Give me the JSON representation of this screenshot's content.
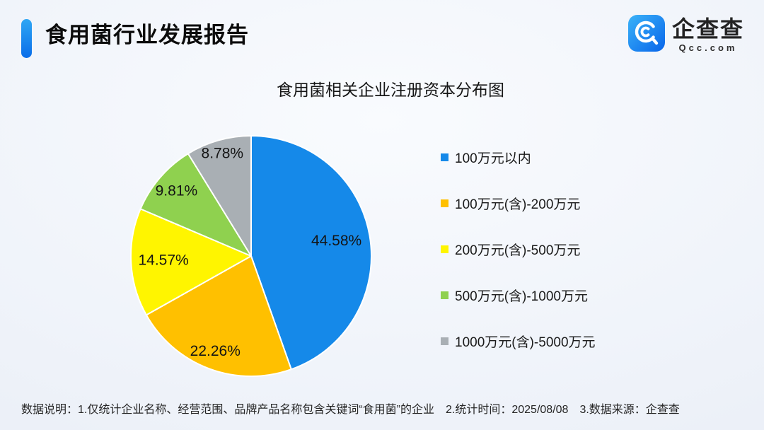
{
  "header": {
    "title": "食用菌行业发展报告",
    "logo": {
      "name": "企查查",
      "domain": "Qcc.com"
    }
  },
  "chart_data": {
    "type": "pie",
    "title": "食用菌相关企业注册资本分布图",
    "start_angle_deg": 0,
    "direction": "clockwise",
    "legend_position": "right",
    "categories": [
      "100万元以内",
      "100万元(含)-200万元",
      "200万元(含)-500万元",
      "500万元(含)-1000万元",
      "1000万元(含)-5000万元"
    ],
    "values": [
      44.58,
      22.26,
      14.57,
      9.81,
      8.78
    ],
    "value_labels": [
      "44.58%",
      "22.26%",
      "14.57%",
      "9.81%",
      "8.78%"
    ],
    "colors": [
      "#1589E9",
      "#FFC000",
      "#FFF500",
      "#8FD14F",
      "#A9AFB4"
    ]
  },
  "accent_color": "#0A6DE9",
  "footer": {
    "notes": [
      "数据说明：1.仅统计企业名称、经营范围、品牌产品名称包含关键词“食用菌”的企业",
      "2.统计时间：2025/08/08",
      "3.数据来源：企查查"
    ]
  }
}
